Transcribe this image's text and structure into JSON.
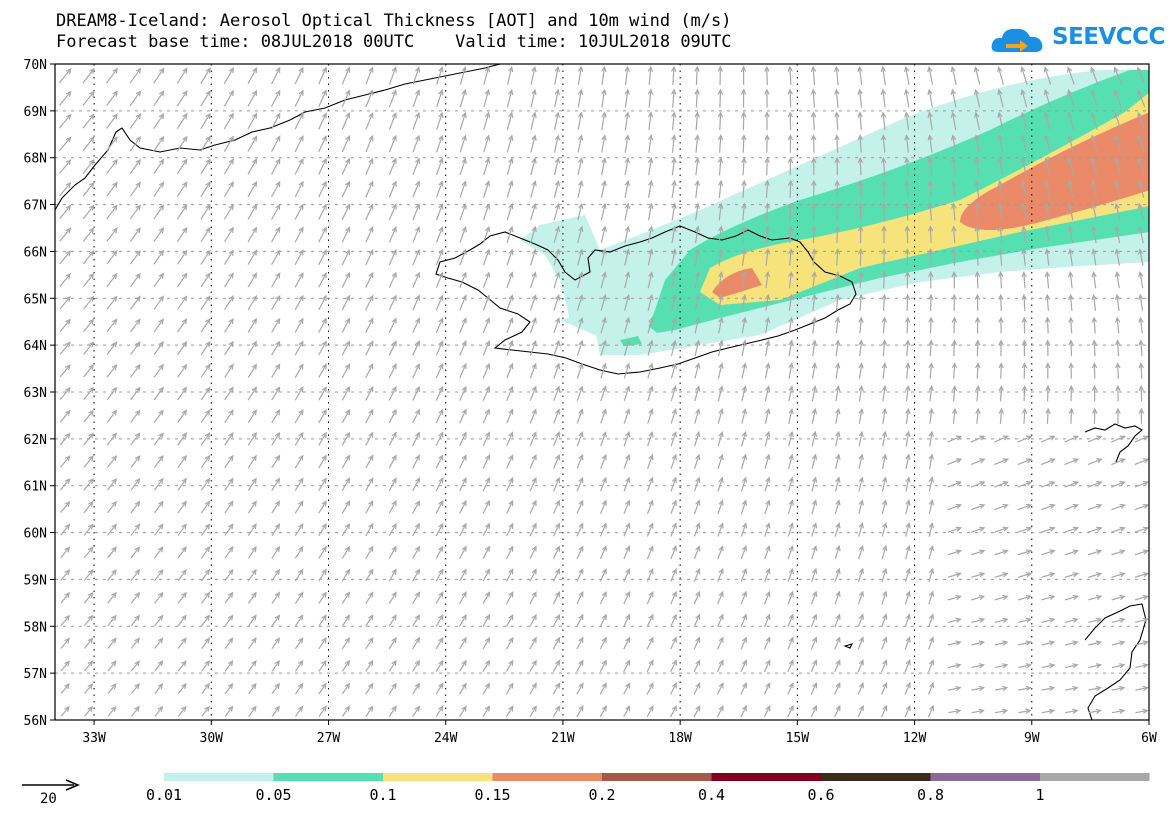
{
  "title_line1": "DREAM8-Iceland: Aerosol Optical Thickness [AOT] and 10m wind (m/s)",
  "title_line2": "Forecast base time: 08JUL2018 00UTC    Valid time: 10JUL2018 09UTC",
  "logo_text": "SEEVCCC",
  "map": {
    "lon_range": [
      -34,
      -6
    ],
    "lat_range": [
      56,
      70
    ],
    "lon_ticks": [
      {
        "v": -33,
        "label": "33W"
      },
      {
        "v": -30,
        "label": "30W"
      },
      {
        "v": -27,
        "label": "27W"
      },
      {
        "v": -24,
        "label": "24W"
      },
      {
        "v": -21,
        "label": "21W"
      },
      {
        "v": -18,
        "label": "18W"
      },
      {
        "v": -15,
        "label": "15W"
      },
      {
        "v": -12,
        "label": "12W"
      },
      {
        "v": -9,
        "label": "9W"
      },
      {
        "v": -6,
        "label": "6W"
      }
    ],
    "lat_ticks": [
      {
        "v": 70,
        "label": "70N"
      },
      {
        "v": 69,
        "label": "69N"
      },
      {
        "v": 68,
        "label": "68N"
      },
      {
        "v": 67,
        "label": "67N"
      },
      {
        "v": 66,
        "label": "66N"
      },
      {
        "v": 65,
        "label": "65N"
      },
      {
        "v": 64,
        "label": "64N"
      },
      {
        "v": 63,
        "label": "63N"
      },
      {
        "v": 62,
        "label": "62N"
      },
      {
        "v": 61,
        "label": "61N"
      },
      {
        "v": 60,
        "label": "60N"
      },
      {
        "v": 59,
        "label": "59N"
      },
      {
        "v": 58,
        "label": "58N"
      },
      {
        "v": 57,
        "label": "57N"
      },
      {
        "v": 56,
        "label": "56N"
      }
    ],
    "grid": true
  },
  "wind_reference": {
    "value": "20"
  },
  "colors": {
    "arrow": "#a8a8a8",
    "c001": "#c4f2ea",
    "c005": "#56e0b2",
    "c01": "#f6e37c",
    "c015": "#ea8a68",
    "c02": "#a35a48",
    "c04": "#800020",
    "c06": "#3c2a1a",
    "c08": "#8c6a9a",
    "c1": "#a8a8a8"
  },
  "legend": {
    "labels": [
      "0.01",
      "0.05",
      "0.1",
      "0.15",
      "0.2",
      "0.4",
      "0.6",
      "0.8",
      "1"
    ]
  }
}
